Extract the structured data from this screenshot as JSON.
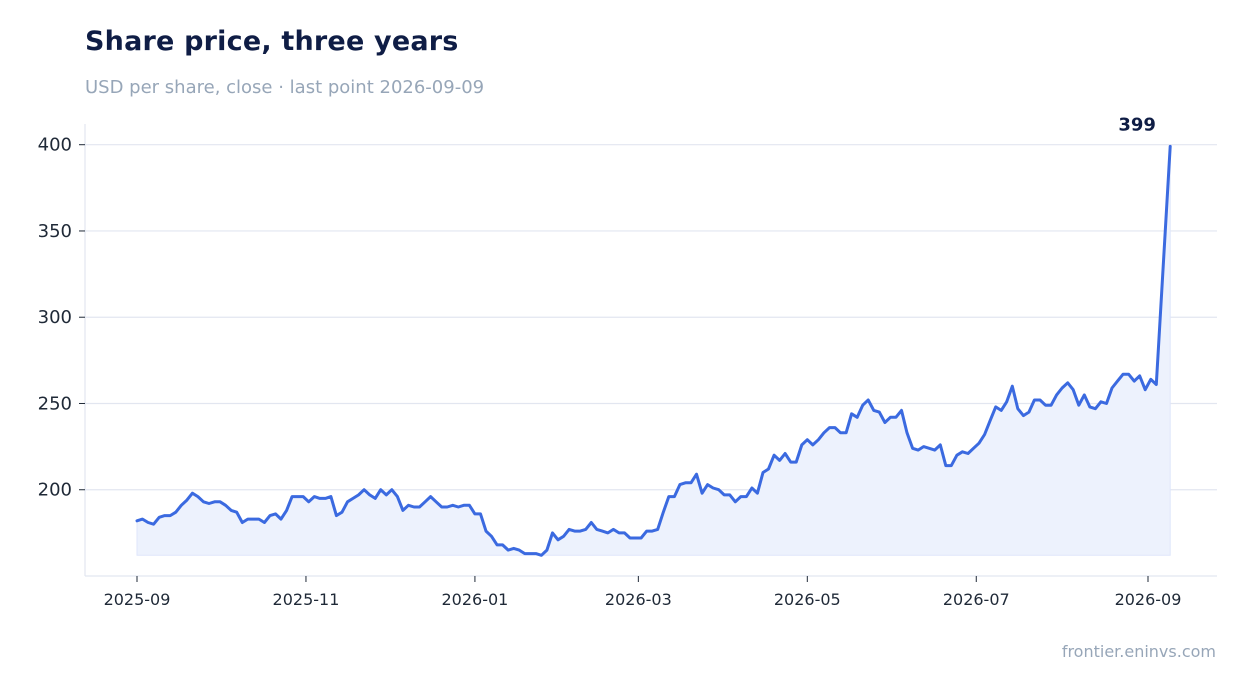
{
  "header": {
    "title": "Share price, three years",
    "subtitle": "USD per share, close · last point 2026-09-09"
  },
  "footer": {
    "source": "frontier.eninvs.com"
  },
  "colors": {
    "line": "#3b6ae0",
    "area": "#edf2fd",
    "grid": "#e2e6f0",
    "axis": "#e2e6f0"
  },
  "chart_data": {
    "type": "area",
    "title": "Share price, three years",
    "subtitle": "USD per share, close · last point 2026-09-09",
    "xlabel": "",
    "ylabel": "",
    "x_ticks": [
      "2025-09",
      "2025-11",
      "2026-01",
      "2026-03",
      "2026-05",
      "2026-07",
      "2026-09"
    ],
    "y_ticks": [
      200,
      250,
      300,
      350,
      400
    ],
    "ylim": [
      150,
      412
    ],
    "grid": "horizontal",
    "end_label": "399",
    "series": [
      {
        "points": [
          [
            "2025-09-01",
            182
          ],
          [
            "2025-09-03",
            183
          ],
          [
            "2025-09-05",
            181
          ],
          [
            "2025-09-07",
            180
          ],
          [
            "2025-09-09",
            184
          ],
          [
            "2025-09-11",
            185
          ],
          [
            "2025-09-13",
            185
          ],
          [
            "2025-09-15",
            187
          ],
          [
            "2025-09-17",
            191
          ],
          [
            "2025-09-19",
            194
          ],
          [
            "2025-09-21",
            198
          ],
          [
            "2025-09-23",
            196
          ],
          [
            "2025-09-25",
            193
          ],
          [
            "2025-09-27",
            192
          ],
          [
            "2025-09-29",
            193
          ],
          [
            "2025-10-01",
            193
          ],
          [
            "2025-10-03",
            191
          ],
          [
            "2025-10-05",
            188
          ],
          [
            "2025-10-07",
            187
          ],
          [
            "2025-10-09",
            181
          ],
          [
            "2025-10-11",
            183
          ],
          [
            "2025-10-13",
            183
          ],
          [
            "2025-10-15",
            183
          ],
          [
            "2025-10-17",
            181
          ],
          [
            "2025-10-19",
            185
          ],
          [
            "2025-10-21",
            186
          ],
          [
            "2025-10-23",
            183
          ],
          [
            "2025-10-25",
            188
          ],
          [
            "2025-10-27",
            196
          ],
          [
            "2025-10-29",
            196
          ],
          [
            "2025-10-31",
            196
          ],
          [
            "2025-11-02",
            193
          ],
          [
            "2025-11-04",
            196
          ],
          [
            "2025-11-06",
            195
          ],
          [
            "2025-11-08",
            195
          ],
          [
            "2025-11-10",
            196
          ],
          [
            "2025-11-12",
            185
          ],
          [
            "2025-11-14",
            187
          ],
          [
            "2025-11-16",
            193
          ],
          [
            "2025-11-18",
            195
          ],
          [
            "2025-11-20",
            197
          ],
          [
            "2025-11-22",
            200
          ],
          [
            "2025-11-24",
            197
          ],
          [
            "2025-11-26",
            195
          ],
          [
            "2025-11-28",
            200
          ],
          [
            "2025-11-30",
            197
          ],
          [
            "2025-12-02",
            200
          ],
          [
            "2025-12-04",
            196
          ],
          [
            "2025-12-06",
            188
          ],
          [
            "2025-12-08",
            191
          ],
          [
            "2025-12-10",
            190
          ],
          [
            "2025-12-12",
            190
          ],
          [
            "2025-12-14",
            193
          ],
          [
            "2025-12-16",
            196
          ],
          [
            "2025-12-18",
            193
          ],
          [
            "2025-12-20",
            190
          ],
          [
            "2025-12-22",
            190
          ],
          [
            "2025-12-24",
            191
          ],
          [
            "2025-12-26",
            190
          ],
          [
            "2025-12-28",
            191
          ],
          [
            "2025-12-30",
            191
          ],
          [
            "2026-01-01",
            186
          ],
          [
            "2026-01-03",
            186
          ],
          [
            "2026-01-05",
            176
          ],
          [
            "2026-01-07",
            173
          ],
          [
            "2026-01-09",
            168
          ],
          [
            "2026-01-11",
            168
          ],
          [
            "2026-01-13",
            165
          ],
          [
            "2026-01-15",
            166
          ],
          [
            "2026-01-17",
            165
          ],
          [
            "2026-01-19",
            163
          ],
          [
            "2026-01-21",
            163
          ],
          [
            "2026-01-23",
            163
          ],
          [
            "2026-01-25",
            162
          ],
          [
            "2026-01-27",
            165
          ],
          [
            "2026-01-29",
            175
          ],
          [
            "2026-01-31",
            171
          ],
          [
            "2026-02-02",
            173
          ],
          [
            "2026-02-04",
            177
          ],
          [
            "2026-02-06",
            176
          ],
          [
            "2026-02-08",
            176
          ],
          [
            "2026-02-10",
            177
          ],
          [
            "2026-02-12",
            181
          ],
          [
            "2026-02-14",
            177
          ],
          [
            "2026-02-16",
            176
          ],
          [
            "2026-02-18",
            175
          ],
          [
            "2026-02-20",
            177
          ],
          [
            "2026-02-22",
            175
          ],
          [
            "2026-02-24",
            175
          ],
          [
            "2026-02-26",
            172
          ],
          [
            "2026-02-28",
            172
          ],
          [
            "2026-03-02",
            172
          ],
          [
            "2026-03-04",
            176
          ],
          [
            "2026-03-06",
            176
          ],
          [
            "2026-03-08",
            177
          ],
          [
            "2026-03-10",
            187
          ],
          [
            "2026-03-12",
            196
          ],
          [
            "2026-03-14",
            196
          ],
          [
            "2026-03-16",
            203
          ],
          [
            "2026-03-18",
            204
          ],
          [
            "2026-03-20",
            204
          ],
          [
            "2026-03-22",
            209
          ],
          [
            "2026-03-24",
            198
          ],
          [
            "2026-03-26",
            203
          ],
          [
            "2026-03-28",
            201
          ],
          [
            "2026-03-30",
            200
          ],
          [
            "2026-04-01",
            197
          ],
          [
            "2026-04-03",
            197
          ],
          [
            "2026-04-05",
            193
          ],
          [
            "2026-04-07",
            196
          ],
          [
            "2026-04-09",
            196
          ],
          [
            "2026-04-11",
            201
          ],
          [
            "2026-04-13",
            198
          ],
          [
            "2026-04-15",
            210
          ],
          [
            "2026-04-17",
            212
          ],
          [
            "2026-04-19",
            220
          ],
          [
            "2026-04-21",
            217
          ],
          [
            "2026-04-23",
            221
          ],
          [
            "2026-04-25",
            216
          ],
          [
            "2026-04-27",
            216
          ],
          [
            "2026-04-29",
            226
          ],
          [
            "2026-05-01",
            229
          ],
          [
            "2026-05-03",
            226
          ],
          [
            "2026-05-05",
            229
          ],
          [
            "2026-05-07",
            233
          ],
          [
            "2026-05-09",
            236
          ],
          [
            "2026-05-11",
            236
          ],
          [
            "2026-05-13",
            233
          ],
          [
            "2026-05-15",
            233
          ],
          [
            "2026-05-17",
            244
          ],
          [
            "2026-05-19",
            242
          ],
          [
            "2026-05-21",
            249
          ],
          [
            "2026-05-23",
            252
          ],
          [
            "2026-05-25",
            246
          ],
          [
            "2026-05-27",
            245
          ],
          [
            "2026-05-29",
            239
          ],
          [
            "2026-05-31",
            242
          ],
          [
            "2026-06-02",
            242
          ],
          [
            "2026-06-04",
            246
          ],
          [
            "2026-06-06",
            233
          ],
          [
            "2026-06-08",
            224
          ],
          [
            "2026-06-10",
            223
          ],
          [
            "2026-06-12",
            225
          ],
          [
            "2026-06-14",
            224
          ],
          [
            "2026-06-16",
            223
          ],
          [
            "2026-06-18",
            226
          ],
          [
            "2026-06-20",
            214
          ],
          [
            "2026-06-22",
            214
          ],
          [
            "2026-06-24",
            220
          ],
          [
            "2026-06-26",
            222
          ],
          [
            "2026-06-28",
            221
          ],
          [
            "2026-06-30",
            224
          ],
          [
            "2026-07-02",
            227
          ],
          [
            "2026-07-04",
            232
          ],
          [
            "2026-07-06",
            240
          ],
          [
            "2026-07-08",
            248
          ],
          [
            "2026-07-10",
            246
          ],
          [
            "2026-07-12",
            251
          ],
          [
            "2026-07-14",
            260
          ],
          [
            "2026-07-16",
            247
          ],
          [
            "2026-07-18",
            243
          ],
          [
            "2026-07-20",
            245
          ],
          [
            "2026-07-22",
            252
          ],
          [
            "2026-07-24",
            252
          ],
          [
            "2026-07-26",
            249
          ],
          [
            "2026-07-28",
            249
          ],
          [
            "2026-07-30",
            255
          ],
          [
            "2026-08-01",
            259
          ],
          [
            "2026-08-03",
            262
          ],
          [
            "2026-08-05",
            258
          ],
          [
            "2026-08-07",
            249
          ],
          [
            "2026-08-09",
            255
          ],
          [
            "2026-08-11",
            248
          ],
          [
            "2026-08-13",
            247
          ],
          [
            "2026-08-15",
            251
          ],
          [
            "2026-08-17",
            250
          ],
          [
            "2026-08-19",
            259
          ],
          [
            "2026-08-21",
            263
          ],
          [
            "2026-08-23",
            267
          ],
          [
            "2026-08-25",
            267
          ],
          [
            "2026-08-27",
            263
          ],
          [
            "2026-08-29",
            266
          ],
          [
            "2026-08-31",
            258
          ],
          [
            "2026-09-02",
            264
          ],
          [
            "2026-09-04",
            261
          ],
          [
            "2026-09-09",
            399
          ]
        ]
      }
    ]
  }
}
